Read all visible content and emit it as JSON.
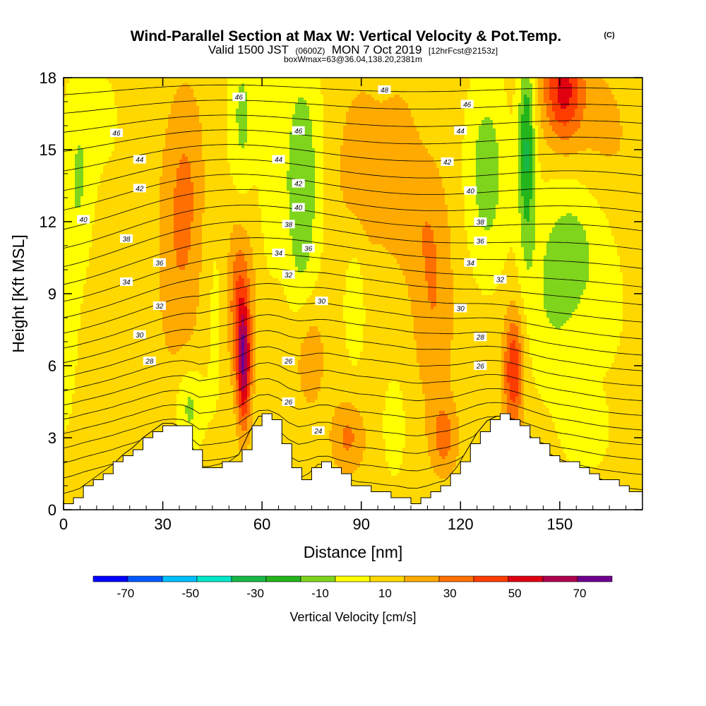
{
  "chart_data": {
    "type": "heatmap",
    "title": "Wind-Parallel Section at Max W: Vertical Velocity & Pot.Temp.",
    "title_mark": "(C)",
    "subtitle": {
      "valid": "Valid 1500 JST",
      "utc": "(0600Z)",
      "date": "MON 7 Oct 2019",
      "forecast": "[12hrFcst@2153z]"
    },
    "box_info": "boxWmax=63@36.04,138.20,2381m",
    "xlabel": "Distance [nm]",
    "ylabel": "Height [Kft MSL]",
    "xlim": [
      0,
      175
    ],
    "ylim": [
      0,
      18
    ],
    "x_ticks": [
      0,
      30,
      60,
      90,
      120,
      150
    ],
    "y_ticks": [
      0,
      3,
      6,
      9,
      12,
      15,
      18
    ],
    "colorbar": {
      "title": "Vertical Velocity [cm/s]",
      "range": [
        -80,
        80
      ],
      "step": 10,
      "tick_labels": [
        -70,
        -50,
        -30,
        -10,
        10,
        30,
        50,
        70
      ],
      "colors": [
        "#0000ff",
        "#0059ff",
        "#00bfff",
        "#00e8c8",
        "#17b845",
        "#24b41c",
        "#7fd41c",
        "#ffff00",
        "#ffd800",
        "#ffaa00",
        "#ff7000",
        "#ff3c00",
        "#e00010",
        "#b00050",
        "#700090"
      ]
    },
    "terrain_kft": [
      [
        0,
        0.3
      ],
      [
        3,
        0.6
      ],
      [
        6,
        1.0
      ],
      [
        9,
        1.3
      ],
      [
        12,
        1.6
      ],
      [
        15,
        1.9
      ],
      [
        18,
        2.3
      ],
      [
        21,
        2.6
      ],
      [
        24,
        3.0
      ],
      [
        27,
        3.3
      ],
      [
        30,
        3.6
      ],
      [
        33,
        3.6
      ],
      [
        36,
        3.4
      ],
      [
        39,
        2.6
      ],
      [
        41,
        1.8
      ],
      [
        44,
        1.8
      ],
      [
        47,
        1.9
      ],
      [
        50,
        2.0
      ],
      [
        53,
        2.3
      ],
      [
        56,
        3.2
      ],
      [
        59,
        3.9
      ],
      [
        62,
        3.9
      ],
      [
        65,
        3.2
      ],
      [
        68,
        2.0
      ],
      [
        71,
        1.3
      ],
      [
        74,
        1.5
      ],
      [
        77,
        1.9
      ],
      [
        80,
        1.9
      ],
      [
        83,
        1.5
      ],
      [
        86,
        1.2
      ],
      [
        89,
        0.9
      ],
      [
        93,
        0.8
      ],
      [
        97,
        0.6
      ],
      [
        101,
        0.5
      ],
      [
        104,
        0.3
      ],
      [
        107,
        0.3
      ],
      [
        110,
        0.6
      ],
      [
        113,
        1.0
      ],
      [
        116,
        1.3
      ],
      [
        119,
        1.8
      ],
      [
        122,
        2.5
      ],
      [
        125,
        3.2
      ],
      [
        128,
        3.7
      ],
      [
        131,
        3.9
      ],
      [
        134,
        3.9
      ],
      [
        137,
        3.6
      ],
      [
        140,
        3.2
      ],
      [
        143,
        2.8
      ],
      [
        146,
        2.4
      ],
      [
        150,
        2.1
      ],
      [
        154,
        1.9
      ],
      [
        158,
        1.6
      ],
      [
        162,
        1.3
      ],
      [
        166,
        1.1
      ],
      [
        170,
        0.9
      ],
      [
        175,
        0.7
      ]
    ],
    "theta_contours": {
      "units": "C",
      "levels": [
        24,
        25,
        26,
        27,
        28,
        29,
        30,
        31,
        32,
        33,
        34,
        35,
        36,
        37,
        38,
        39,
        40,
        41,
        42,
        43,
        44,
        45,
        46,
        47,
        48
      ],
      "labels": [
        {
          "value": "46",
          "x": 53,
          "y": 17.2
        },
        {
          "value": "48",
          "x": 97,
          "y": 17.5
        },
        {
          "value": "46",
          "x": 122,
          "y": 16.9
        },
        {
          "value": "46",
          "x": 16,
          "y": 15.7
        },
        {
          "value": "46",
          "x": 71,
          "y": 15.8
        },
        {
          "value": "44",
          "x": 120,
          "y": 15.8
        },
        {
          "value": "44",
          "x": 23,
          "y": 14.6
        },
        {
          "value": "44",
          "x": 65,
          "y": 14.6
        },
        {
          "value": "42",
          "x": 116,
          "y": 14.5
        },
        {
          "value": "42",
          "x": 23,
          "y": 13.4
        },
        {
          "value": "42",
          "x": 71,
          "y": 13.6
        },
        {
          "value": "40",
          "x": 123,
          "y": 13.3
        },
        {
          "value": "40",
          "x": 71,
          "y": 12.6
        },
        {
          "value": "40",
          "x": 6,
          "y": 12.1
        },
        {
          "value": "38",
          "x": 68,
          "y": 11.9
        },
        {
          "value": "38",
          "x": 126,
          "y": 12.0
        },
        {
          "value": "38",
          "x": 19,
          "y": 11.3
        },
        {
          "value": "36",
          "x": 74,
          "y": 10.9
        },
        {
          "value": "36",
          "x": 126,
          "y": 11.2
        },
        {
          "value": "34",
          "x": 65,
          "y": 10.7
        },
        {
          "value": "36",
          "x": 29,
          "y": 10.3
        },
        {
          "value": "34",
          "x": 123,
          "y": 10.3
        },
        {
          "value": "32",
          "x": 68,
          "y": 9.8
        },
        {
          "value": "32",
          "x": 132,
          "y": 9.6
        },
        {
          "value": "34",
          "x": 19,
          "y": 9.5
        },
        {
          "value": "30",
          "x": 78,
          "y": 8.7
        },
        {
          "value": "32",
          "x": 29,
          "y": 8.5
        },
        {
          "value": "30",
          "x": 120,
          "y": 8.4
        },
        {
          "value": "30",
          "x": 23,
          "y": 7.3
        },
        {
          "value": "28",
          "x": 126,
          "y": 7.2
        },
        {
          "value": "28",
          "x": 26,
          "y": 6.2
        },
        {
          "value": "26",
          "x": 68,
          "y": 6.2
        },
        {
          "value": "26",
          "x": 126,
          "y": 6.0
        },
        {
          "value": "26",
          "x": 68,
          "y": 4.5
        },
        {
          "value": "24",
          "x": 77,
          "y": 3.3
        }
      ]
    },
    "w_features_cm_s": [
      {
        "x": 0,
        "y": 9,
        "sx": 6,
        "sy": 7,
        "w": -8
      },
      {
        "x": 5,
        "y": 14,
        "sx": 4,
        "sy": 4,
        "w": -12
      },
      {
        "x": 13,
        "y": 16,
        "sx": 7,
        "sy": 4,
        "w": -5
      },
      {
        "x": 12,
        "y": 8,
        "sx": 7,
        "sy": 5,
        "w": 3
      },
      {
        "x": 35,
        "y": 10,
        "sx": 7,
        "sy": 5,
        "w": 12
      },
      {
        "x": 37,
        "y": 14,
        "sx": 6,
        "sy": 4,
        "w": 12
      },
      {
        "x": 46,
        "y": 9,
        "sx": 4,
        "sy": 6,
        "w": -9
      },
      {
        "x": 38,
        "y": 4.3,
        "sx": 4,
        "sy": 1.8,
        "w": -18
      },
      {
        "x": 54,
        "y": 10,
        "sx": 8,
        "sy": 5,
        "w": 8
      },
      {
        "x": 54.5,
        "y": 6,
        "sx": 2,
        "sy": 2.5,
        "w": 48
      },
      {
        "x": 53,
        "y": 8.5,
        "sx": 3,
        "sy": 3,
        "w": 20
      },
      {
        "x": 54,
        "y": 16,
        "sx": 4,
        "sy": 4,
        "w": -18
      },
      {
        "x": 62,
        "y": 14,
        "sx": 3.5,
        "sy": 5,
        "w": -12
      },
      {
        "x": 72,
        "y": 14,
        "sx": 6,
        "sy": 5,
        "w": -20
      },
      {
        "x": 72,
        "y": 10,
        "sx": 4,
        "sy": 5,
        "w": -6
      },
      {
        "x": 74,
        "y": 6.5,
        "sx": 5,
        "sy": 2.5,
        "w": 15
      },
      {
        "x": 86,
        "y": 3,
        "sx": 5,
        "sy": 1.5,
        "w": 18
      },
      {
        "x": 90,
        "y": 14,
        "sx": 8,
        "sy": 4,
        "w": 12
      },
      {
        "x": 88,
        "y": 9,
        "sx": 3.5,
        "sy": 3,
        "w": -12
      },
      {
        "x": 100,
        "y": 3.5,
        "sx": 4,
        "sy": 2.5,
        "w": -8
      },
      {
        "x": 102,
        "y": 14,
        "sx": 6,
        "sy": 4,
        "w": 10
      },
      {
        "x": 112,
        "y": 8,
        "sx": 6,
        "sy": 4,
        "w": 14
      },
      {
        "x": 115,
        "y": 3,
        "sx": 4,
        "sy": 1.5,
        "w": 20
      },
      {
        "x": 110,
        "y": 12,
        "sx": 6,
        "sy": 3,
        "w": 10
      },
      {
        "x": 128,
        "y": 14,
        "sx": 6,
        "sy": 4,
        "w": -20
      },
      {
        "x": 136,
        "y": 5.8,
        "sx": 3,
        "sy": 2.5,
        "w": 36
      },
      {
        "x": 140,
        "y": 15,
        "sx": 2.5,
        "sy": 4,
        "w": -35
      },
      {
        "x": 148,
        "y": 9,
        "sx": 9,
        "sy": 4,
        "w": -14
      },
      {
        "x": 155,
        "y": 11,
        "sx": 8,
        "sy": 3,
        "w": -12
      },
      {
        "x": 151,
        "y": 17.5,
        "sx": 6,
        "sy": 2.2,
        "w": 40
      },
      {
        "x": 162,
        "y": 16,
        "sx": 8,
        "sy": 3,
        "w": 8
      },
      {
        "x": 165,
        "y": 9,
        "sx": 7,
        "sy": 4,
        "w": -6
      },
      {
        "x": 158,
        "y": 3,
        "sx": 9,
        "sy": 2,
        "w": -6
      },
      {
        "x": 170,
        "y": 14,
        "sx": 6,
        "sy": 4,
        "w": 3
      }
    ]
  }
}
